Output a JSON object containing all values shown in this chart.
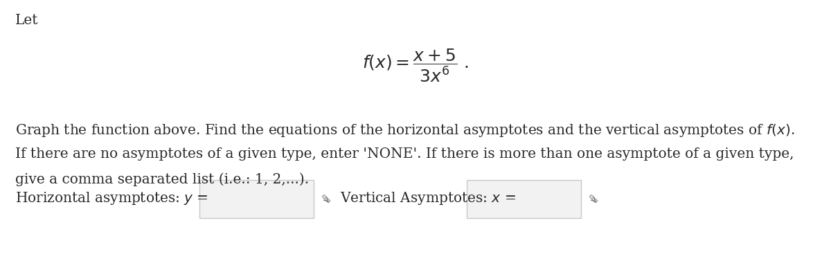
{
  "background_color": "#ffffff",
  "text_color": "#2a2a2a",
  "let_text": "Let",
  "body_text_line1": "Graph the function above. Find the equations of the horizontal asymptotes and the vertical asymptotes of $f(x)$.",
  "body_text_line2": "If there are no asymptotes of a given type, enter 'NONE'. If there is more than one asymptote of a given type,",
  "body_text_line3": "give a comma separated list (i.e.: 1, 2,...).",
  "horiz_label": "Horizontal asymptotes: $y$ =",
  "vert_label": "Vertical Asymptotes: $x$ =",
  "font_size_body": 14.5,
  "font_size_let": 14.5,
  "font_size_formula": 18,
  "box_edge_color": "#c8c8c8",
  "box_face_color": "#f2f2f2",
  "pencil_color": "#aaaaaa",
  "arrow_color": "#7a7a7a"
}
